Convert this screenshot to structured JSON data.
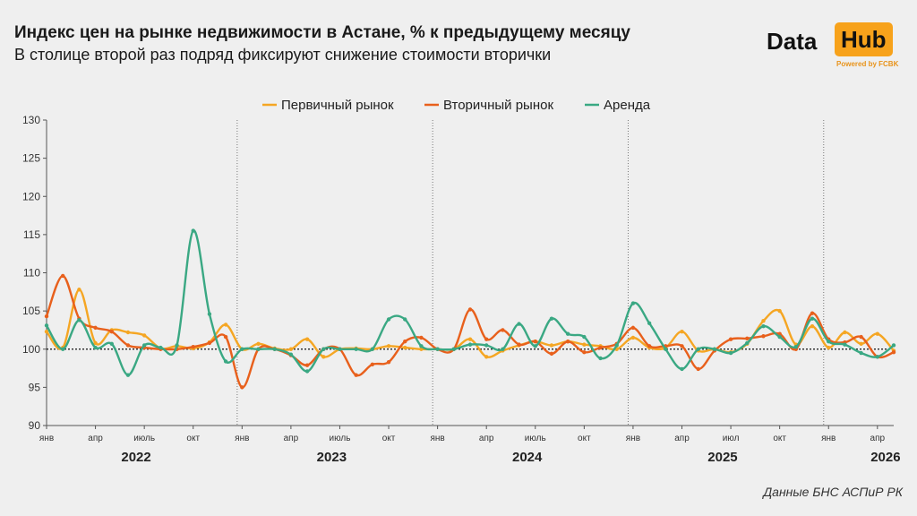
{
  "header": {
    "title": "Индекс цен на рынке недвижимости в Астане, % к предыдущему месяцу",
    "subtitle": "В столице второй раз подряд фиксируют снижение стоимости вторички"
  },
  "logo": {
    "word1": "Data",
    "word2": "Hub",
    "powered": "Powered by FCBK"
  },
  "source": "Данные БНС АСПиР РК",
  "chart_data": {
    "type": "line",
    "ylim": [
      90,
      130
    ],
    "yticks": [
      90,
      95,
      100,
      105,
      110,
      115,
      120,
      125,
      130
    ],
    "baseline": 100,
    "month_tick_labels": [
      {
        "i": 0,
        "label": "янв"
      },
      {
        "i": 3,
        "label": "апр"
      },
      {
        "i": 6,
        "label": "июль"
      },
      {
        "i": 9,
        "label": "окт"
      },
      {
        "i": 12,
        "label": "янв"
      },
      {
        "i": 15,
        "label": "апр"
      },
      {
        "i": 18,
        "label": "июль"
      },
      {
        "i": 21,
        "label": "окт"
      },
      {
        "i": 24,
        "label": "янв"
      },
      {
        "i": 27,
        "label": "апр"
      },
      {
        "i": 30,
        "label": "июль"
      },
      {
        "i": 33,
        "label": "окт"
      },
      {
        "i": 36,
        "label": "янв"
      },
      {
        "i": 39,
        "label": "апр"
      },
      {
        "i": 42,
        "label": "июл"
      },
      {
        "i": 45,
        "label": "окт"
      },
      {
        "i": 48,
        "label": "янв"
      },
      {
        "i": 51,
        "label": "апр"
      }
    ],
    "year_labels": [
      {
        "year": "2022",
        "center": 5.5
      },
      {
        "year": "2023",
        "center": 17.5
      },
      {
        "year": "2024",
        "center": 29.5
      },
      {
        "year": "2025",
        "center": 41.5
      },
      {
        "year": "2026",
        "center": 51.5
      }
    ],
    "year_separators": [
      11.7,
      23.7,
      35.7,
      47.7
    ],
    "legend_position": "top-center",
    "grid": false,
    "series": [
      {
        "name": "Первичный рынок",
        "color": "#f5a623",
        "values": [
          102.3,
          100.2,
          107.8,
          100.8,
          102.5,
          102.2,
          101.8,
          100.1,
          100.4,
          100.1,
          100.9,
          103.2,
          100.0,
          100.7,
          100.1,
          100.0,
          101.3,
          99.0,
          100.0,
          100.1,
          100.0,
          100.4,
          100.2,
          100.0,
          100.0,
          100.0,
          101.3,
          99.0,
          99.8,
          100.5,
          101.0,
          100.5,
          101.0,
          100.6,
          100.4,
          100.0,
          101.5,
          100.2,
          100.2,
          102.3,
          99.8,
          100.0,
          99.6,
          100.7,
          103.7,
          105.0,
          100.6,
          103.0,
          100.2,
          102.2,
          100.7,
          102.0,
          99.8
        ]
      },
      {
        "name": "Вторичный рынок",
        "color": "#e8601c",
        "values": [
          104.3,
          109.6,
          104.0,
          102.8,
          102.3,
          100.5,
          100.2,
          100.0,
          100.0,
          100.3,
          100.8,
          101.6,
          95.0,
          100.0,
          100.0,
          99.2,
          97.9,
          100.0,
          100.0,
          96.6,
          98.0,
          98.3,
          101.0,
          101.5,
          100.0,
          100.0,
          105.2,
          101.3,
          102.5,
          100.6,
          101.0,
          99.4,
          101.0,
          99.6,
          100.2,
          100.7,
          102.8,
          100.4,
          100.4,
          100.4,
          97.4,
          99.8,
          101.3,
          101.4,
          101.7,
          102.0,
          100.0,
          104.7,
          101.3,
          100.9,
          101.6,
          99.0,
          99.6
        ]
      },
      {
        "name": "Аренда",
        "color": "#3aa883",
        "values": [
          103.1,
          100.0,
          103.8,
          100.2,
          100.7,
          96.6,
          100.5,
          100.2,
          100.5,
          115.5,
          104.6,
          98.4,
          100.0,
          100.0,
          100.0,
          99.3,
          97.1,
          100.0,
          100.0,
          100.0,
          100.0,
          103.9,
          103.9,
          100.4,
          100.0,
          100.0,
          100.6,
          100.5,
          100.0,
          103.3,
          100.4,
          104.0,
          102.0,
          101.6,
          98.8,
          100.5,
          106.0,
          103.4,
          100.0,
          97.4,
          100.0,
          100.0,
          99.5,
          100.8,
          103.0,
          101.6,
          100.3,
          104.0,
          101.0,
          100.6,
          99.5,
          99.0,
          100.5
        ]
      }
    ]
  }
}
